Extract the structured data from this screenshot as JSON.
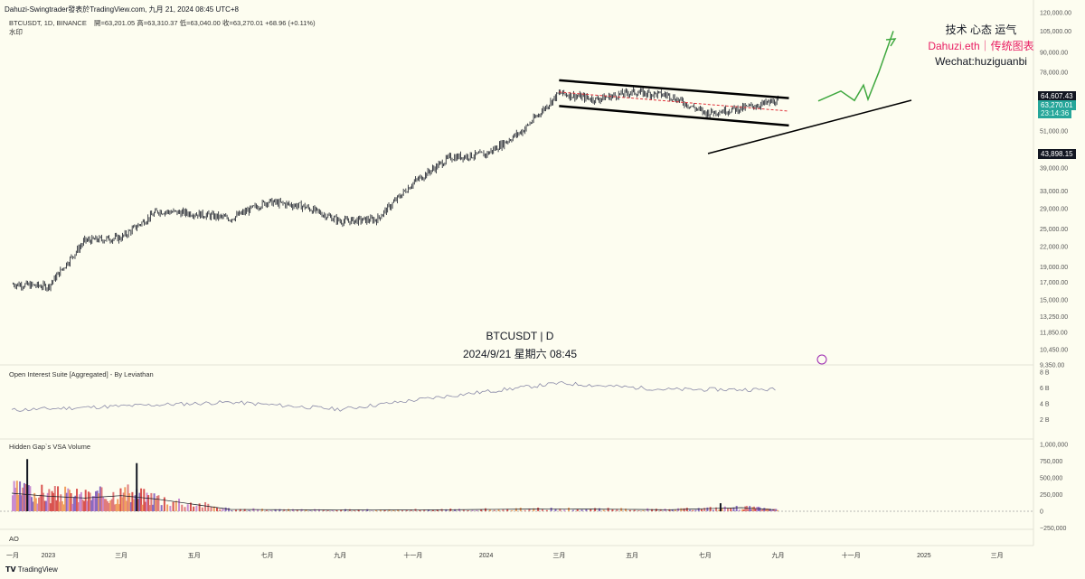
{
  "header": {
    "title": "Dahuzi-Swingtrader發表於TradingView.com,   九月 21, 2024 08:45 UTC+8",
    "symbol_line": "BTCUSDT, 1D, BINANCE",
    "ohlc": "開=63,201.05  高=63,310.37  低=63,040.00  收=63,270.01  +68.96 (+0.11%)",
    "watermark_small": "水印"
  },
  "annotations": {
    "line1": "技术 心态 运气",
    "line2": "Dahuzi.eth｜传统图表",
    "line3": "Wechat:huziguanbi",
    "center_symbol": "BTCUSDT | D",
    "center_date": "2024/9/21 星期六 08:45"
  },
  "badges": {
    "upper": "64,607.43",
    "current": "63,270.01",
    "countdown": "23:14:36",
    "lower": "43,898.15"
  },
  "panes": {
    "oi_label": "Open Interest Suite [Aggregated] - By Leviathan",
    "vsa_label": "Hidden Gap`s VSA Volume",
    "ao_label": "AO"
  },
  "footer": {
    "brand": "TradingView"
  },
  "colors": {
    "background": "#fdfdf0",
    "candle": "#131722",
    "channel": "#000000",
    "midline": "#e0323a",
    "projection": "#3fa83f",
    "current_price": "#26a69a",
    "brand_pink": "#e91e63"
  },
  "chart_data": [
    {
      "type": "line",
      "title": "BTCUSDT | D",
      "yscale": "log",
      "ylim": [
        9350,
        120000
      ],
      "y_ticks": [
        "120,000.00",
        "105,000.00",
        "90,000.00",
        "78,000.00",
        "64,607.43",
        "63,270.01",
        "51,000.00",
        "43,898.15",
        "39,000.00",
        "33,000.00",
        "29,000.00",
        "25,000.00",
        "22,000.00",
        "19,000.00",
        "17,000.00",
        "15,000.00",
        "13,250.00",
        "11,850.00",
        "10,450.00",
        "9,350.00"
      ],
      "x_ticks": [
        "一月",
        "2023",
        "三月",
        "五月",
        "七月",
        "九月",
        "十一月",
        "2024",
        "三月",
        "五月",
        "七月",
        "九月",
        "十一月",
        "2025",
        "三月"
      ],
      "x": [
        "2022-12",
        "2023-01",
        "2023-02",
        "2023-03",
        "2023-04",
        "2023-05",
        "2023-06",
        "2023-07",
        "2023-08",
        "2023-09",
        "2023-10",
        "2023-11",
        "2023-12",
        "2024-01",
        "2024-02",
        "2024-03",
        "2024-04",
        "2024-05",
        "2024-06",
        "2024-07",
        "2024-08",
        "2024-09"
      ],
      "series": [
        {
          "values": [
            16800,
            16500,
            23000,
            23500,
            28500,
            28000,
            27000,
            30500,
            29500,
            26500,
            26800,
            35000,
            42000,
            43000,
            51000,
            67000,
            64000,
            67500,
            66000,
            58000,
            60000,
            63270
          ]
        }
      ],
      "patterns": {
        "channel_upper": [
          {
            "date": "2024-03",
            "price": 73500
          },
          {
            "date": "2024-09",
            "price": 64607
          }
        ],
        "channel_lower": [
          {
            "date": "2024-03",
            "price": 61000
          },
          {
            "date": "2024-09",
            "price": 53000
          }
        ],
        "channel_mid": [
          {
            "date": "2024-03",
            "price": 67500
          },
          {
            "date": "2024-09",
            "price": 58800
          }
        ],
        "support_trendline": [
          {
            "date": "2024-07",
            "price": 43900
          },
          {
            "date": "2024-11",
            "price": 66000
          }
        ],
        "projection_path": [
          63270,
          68000,
          63500,
          71000,
          64000,
          78000,
          105000
        ]
      }
    },
    {
      "type": "line",
      "title": "Open Interest Suite [Aggregated] - By Leviathan",
      "y_ticks": [
        "8 B",
        "6 B",
        "4 B",
        "2 B"
      ],
      "x": [
        "2022-12",
        "2023-03",
        "2023-06",
        "2023-09",
        "2023-12",
        "2024-03",
        "2024-06",
        "2024-09"
      ],
      "series": [
        {
          "values": [
            3.2,
            3.7,
            4.2,
            3.3,
            5.0,
            6.6,
            5.8,
            5.8
          ]
        }
      ]
    },
    {
      "type": "bar",
      "title": "Hidden Gap`s VSA Volume",
      "y_ticks": [
        "1,000,000",
        "750,000",
        "500,000",
        "250,000",
        "0",
        "−250,000"
      ],
      "x": [
        "2022-12",
        "2023-01",
        "2023-02",
        "2023-03",
        "2023-04",
        "2023-06",
        "2023-09",
        "2023-12",
        "2024-03",
        "2024-06",
        "2024-08",
        "2024-09"
      ],
      "series": [
        {
          "values": [
            300000,
            250000,
            220000,
            260000,
            200000,
            30000,
            20000,
            25000,
            40000,
            25000,
            60000,
            20000
          ]
        }
      ]
    }
  ]
}
